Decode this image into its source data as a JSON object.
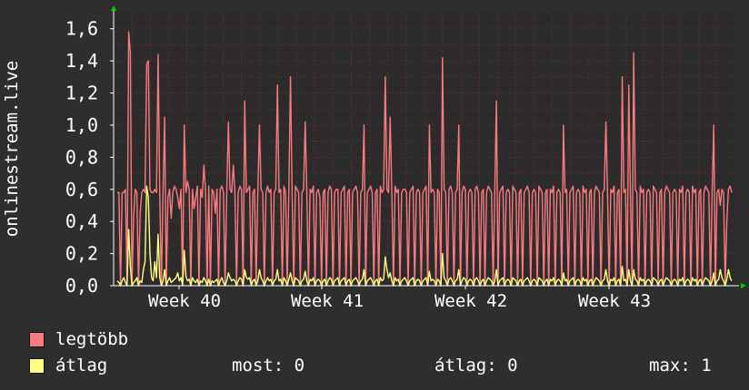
{
  "chart_data": {
    "type": "line",
    "ylabel": "onlinestream.live",
    "y_tick_labels": [
      "0,0",
      "0,2",
      "0,4",
      "0,6",
      "0,8",
      "1,0",
      "1,2",
      "1,4",
      "1,6"
    ],
    "y_ticks": [
      0,
      0.2,
      0.4,
      0.6,
      0.8,
      1.0,
      1.2,
      1.4,
      1.6
    ],
    "ylim": [
      0,
      1.7
    ],
    "x_tick_labels": [
      "Week 40",
      "Week 41",
      "Week 42",
      "Week 43"
    ],
    "grid": true,
    "legend_position": "bottom",
    "series": [
      {
        "name": "legtöbb",
        "color": "#f77c80",
        "values": [
          0.58,
          0.58,
          0.0,
          0.58,
          0.58,
          0.6,
          0.0,
          1.58,
          1.45,
          0.0,
          0.42,
          0.6,
          0.58,
          0.0,
          0.45,
          0.58,
          0.6,
          0.58,
          1.38,
          1.4,
          0.6,
          0.58,
          0.58,
          0.6,
          0.58,
          1.44,
          0.58,
          0.0,
          0.58,
          1.05,
          0.0,
          0.55,
          0.6,
          0.42,
          0.58,
          0.62,
          0.6,
          0.55,
          0.48,
          0.6,
          0.0,
          1.0,
          0.58,
          0.65,
          0.6,
          0.0,
          0.6,
          0.48,
          0.55,
          0.62,
          0.0,
          0.6,
          0.55,
          0.75,
          0.6,
          0.0,
          0.62,
          0.0,
          0.6,
          0.58,
          0.45,
          0.6,
          0.0,
          0.6,
          0.62,
          0.58,
          0.0,
          0.58,
          1.02,
          0.6,
          0.58,
          0.75,
          0.58,
          0.0,
          0.58,
          0.62,
          0.6,
          0.0,
          1.15,
          0.58,
          0.6,
          0.62,
          0.0,
          0.58,
          0.6,
          0.0,
          0.58,
          1.0,
          0.6,
          0.58,
          0.0,
          0.58,
          0.62,
          0.58,
          0.6,
          0.0,
          0.58,
          0.6,
          1.25,
          0.58,
          0.6,
          0.0,
          0.62,
          0.58,
          0.0,
          0.6,
          1.3,
          0.58,
          0.0,
          0.62,
          0.6,
          0.58,
          0.0,
          0.58,
          0.6,
          1.02,
          0.58,
          0.0,
          0.6,
          0.58,
          0.62,
          0.0,
          0.58,
          0.6,
          0.55,
          0.0,
          0.58,
          0.6,
          0.0,
          0.58,
          0.62,
          0.6,
          0.0,
          0.58,
          0.6,
          0.6,
          0.0,
          0.58,
          0.6,
          0.62,
          0.0,
          0.58,
          0.6,
          0.0,
          0.58,
          0.6,
          0.62,
          0.58,
          0.0,
          0.58,
          0.6,
          1.0,
          0.0,
          0.58,
          0.6,
          0.62,
          0.58,
          0.0,
          0.58,
          0.6,
          0.0,
          0.62,
          0.58,
          0.6,
          1.3,
          0.6,
          0.58,
          1.05,
          0.58,
          0.0,
          0.62,
          0.58,
          0.6,
          0.0,
          0.58,
          0.6,
          0.6,
          0.58,
          0.0,
          0.58,
          0.6,
          0.62,
          0.0,
          0.58,
          0.6,
          0.58,
          0.0,
          0.58,
          0.6,
          0.62,
          0.0,
          1.0,
          0.58,
          0.6,
          0.58,
          0.0,
          0.6,
          0.58,
          0.0,
          1.42,
          0.6,
          0.58,
          0.0,
          0.6,
          0.62,
          0.58,
          0.0,
          0.58,
          0.6,
          1.0,
          0.0,
          0.58,
          0.62,
          0.6,
          0.0,
          0.58,
          0.6,
          0.58,
          0.0,
          0.6,
          0.62,
          0.58,
          0.0,
          0.58,
          0.6,
          0.0,
          0.58,
          0.62,
          0.6,
          0.58,
          0.0,
          0.58,
          1.15,
          0.0,
          0.58,
          0.6,
          0.62,
          0.0,
          0.58,
          0.6,
          0.58,
          0.0,
          0.62,
          0.6,
          0.58,
          0.0,
          0.58,
          0.6,
          0.0,
          0.58,
          0.6,
          0.62,
          0.58,
          0.0,
          0.58,
          0.6,
          0.58,
          0.0,
          0.62,
          0.6,
          0.58,
          0.0,
          0.58,
          0.6,
          0.0,
          0.6,
          0.58,
          0.62,
          0.0,
          0.58,
          0.6,
          0.58,
          0.0,
          1.0,
          0.58,
          0.6,
          0.0,
          0.58,
          0.6,
          0.62,
          0.0,
          0.58,
          0.6,
          0.58,
          0.0,
          0.62,
          0.58,
          0.6,
          0.0,
          0.58,
          0.6,
          0.0,
          0.58,
          0.62,
          0.6,
          0.58,
          0.0,
          0.58,
          0.6,
          1.02,
          0.58,
          0.0,
          0.6,
          0.58,
          0.62,
          0.0,
          0.58,
          0.6,
          0.0,
          1.3,
          0.58,
          0.6,
          0.0,
          1.25,
          0.58,
          0.0,
          1.45,
          0.6,
          0.58,
          0.0,
          0.62,
          0.58,
          0.6,
          0.0,
          0.58,
          0.6,
          0.58,
          0.0,
          0.62,
          0.6,
          0.58,
          0.0,
          0.58,
          0.6,
          0.0,
          0.58,
          0.62,
          0.6,
          0.58,
          0.0,
          0.58,
          0.6,
          0.58,
          0.0,
          0.6,
          0.58,
          0.62,
          0.0,
          0.58,
          0.6,
          0.58,
          0.0,
          0.62,
          0.58,
          0.6,
          0.0,
          0.58,
          0.6,
          0.0,
          0.58,
          0.62,
          0.6,
          0.58,
          0.0,
          0.58,
          1.0,
          0.0,
          0.58,
          0.6,
          0.5,
          0.6,
          0.58,
          0.0,
          0.4,
          0.6,
          0.62,
          0.58
        ]
      },
      {
        "name": "átlag",
        "color": "#ffff80",
        "values": [
          0.03,
          0.02,
          0.0,
          0.03,
          0.05,
          0.02,
          0.0,
          0.35,
          0.12,
          0.0,
          0.02,
          0.03,
          0.05,
          0.0,
          0.03,
          0.02,
          0.1,
          0.15,
          0.62,
          0.55,
          0.2,
          0.05,
          0.03,
          0.15,
          0.05,
          0.32,
          0.05,
          0.0,
          0.03,
          0.1,
          0.0,
          0.03,
          0.05,
          0.02,
          0.03,
          0.04,
          0.05,
          0.08,
          0.03,
          0.05,
          0.0,
          0.22,
          0.06,
          0.03,
          0.04,
          0.0,
          0.05,
          0.03,
          0.02,
          0.04,
          0.0,
          0.03,
          0.02,
          0.05,
          0.03,
          0.0,
          0.04,
          0.0,
          0.03,
          0.02,
          0.03,
          0.04,
          0.0,
          0.03,
          0.05,
          0.02,
          0.0,
          0.03,
          0.08,
          0.05,
          0.03,
          0.04,
          0.03,
          0.0,
          0.03,
          0.05,
          0.04,
          0.0,
          0.1,
          0.05,
          0.04,
          0.05,
          0.0,
          0.03,
          0.04,
          0.0,
          0.03,
          0.1,
          0.05,
          0.03,
          0.0,
          0.03,
          0.05,
          0.03,
          0.04,
          0.0,
          0.03,
          0.04,
          0.1,
          0.03,
          0.04,
          0.0,
          0.05,
          0.03,
          0.0,
          0.04,
          0.08,
          0.03,
          0.0,
          0.05,
          0.04,
          0.03,
          0.0,
          0.03,
          0.04,
          0.09,
          0.03,
          0.0,
          0.04,
          0.03,
          0.05,
          0.0,
          0.03,
          0.04,
          0.03,
          0.0,
          0.03,
          0.04,
          0.0,
          0.03,
          0.05,
          0.04,
          0.0,
          0.03,
          0.04,
          0.05,
          0.0,
          0.03,
          0.04,
          0.05,
          0.0,
          0.03,
          0.04,
          0.0,
          0.03,
          0.04,
          0.05,
          0.03,
          0.0,
          0.03,
          0.04,
          0.1,
          0.0,
          0.03,
          0.04,
          0.05,
          0.03,
          0.0,
          0.03,
          0.04,
          0.0,
          0.05,
          0.03,
          0.04,
          0.18,
          0.1,
          0.05,
          0.08,
          0.03,
          0.0,
          0.05,
          0.03,
          0.04,
          0.0,
          0.03,
          0.04,
          0.05,
          0.03,
          0.0,
          0.03,
          0.04,
          0.05,
          0.0,
          0.03,
          0.04,
          0.03,
          0.0,
          0.03,
          0.04,
          0.05,
          0.0,
          0.09,
          0.03,
          0.04,
          0.03,
          0.0,
          0.04,
          0.03,
          0.0,
          0.2,
          0.05,
          0.03,
          0.0,
          0.04,
          0.05,
          0.03,
          0.0,
          0.03,
          0.04,
          0.1,
          0.0,
          0.03,
          0.05,
          0.04,
          0.0,
          0.03,
          0.04,
          0.03,
          0.0,
          0.04,
          0.05,
          0.03,
          0.0,
          0.03,
          0.04,
          0.0,
          0.03,
          0.05,
          0.04,
          0.03,
          0.0,
          0.03,
          0.1,
          0.0,
          0.03,
          0.04,
          0.05,
          0.0,
          0.03,
          0.04,
          0.03,
          0.0,
          0.05,
          0.04,
          0.03,
          0.0,
          0.03,
          0.04,
          0.0,
          0.03,
          0.04,
          0.05,
          0.03,
          0.0,
          0.03,
          0.04,
          0.03,
          0.0,
          0.05,
          0.04,
          0.03,
          0.0,
          0.03,
          0.04,
          0.0,
          0.04,
          0.03,
          0.05,
          0.0,
          0.03,
          0.04,
          0.03,
          0.0,
          0.08,
          0.03,
          0.04,
          0.0,
          0.03,
          0.04,
          0.05,
          0.0,
          0.03,
          0.04,
          0.03,
          0.0,
          0.05,
          0.03,
          0.04,
          0.0,
          0.03,
          0.04,
          0.0,
          0.03,
          0.05,
          0.04,
          0.03,
          0.0,
          0.03,
          0.04,
          0.1,
          0.03,
          0.0,
          0.04,
          0.03,
          0.05,
          0.0,
          0.03,
          0.04,
          0.0,
          0.12,
          0.03,
          0.04,
          0.0,
          0.1,
          0.03,
          0.0,
          0.1,
          0.04,
          0.03,
          0.0,
          0.05,
          0.03,
          0.04,
          0.0,
          0.03,
          0.04,
          0.03,
          0.0,
          0.05,
          0.04,
          0.03,
          0.0,
          0.03,
          0.04,
          0.0,
          0.03,
          0.05,
          0.04,
          0.03,
          0.0,
          0.03,
          0.04,
          0.03,
          0.0,
          0.04,
          0.03,
          0.05,
          0.0,
          0.03,
          0.04,
          0.03,
          0.0,
          0.05,
          0.03,
          0.04,
          0.0,
          0.03,
          0.04,
          0.0,
          0.03,
          0.05,
          0.04,
          0.03,
          0.0,
          0.03,
          0.08,
          0.0,
          0.03,
          0.04,
          0.1,
          0.05,
          0.03,
          0.0,
          0.04,
          0.1,
          0.05,
          0.03
        ]
      }
    ]
  },
  "legend": {
    "items": [
      {
        "label": "legtöbb",
        "color": "#f77c80"
      },
      {
        "label": "átlag",
        "color": "#ffff80"
      }
    ],
    "stats": {
      "most": "most: 0",
      "atlag": "átlag: 0",
      "max": "max: 1"
    }
  },
  "colors": {
    "background": "#2e2e2e",
    "canvas": "#2b2b2b",
    "grid": "#7a2a2a",
    "axis": "#ffffff",
    "arrow": "#00cc00"
  }
}
